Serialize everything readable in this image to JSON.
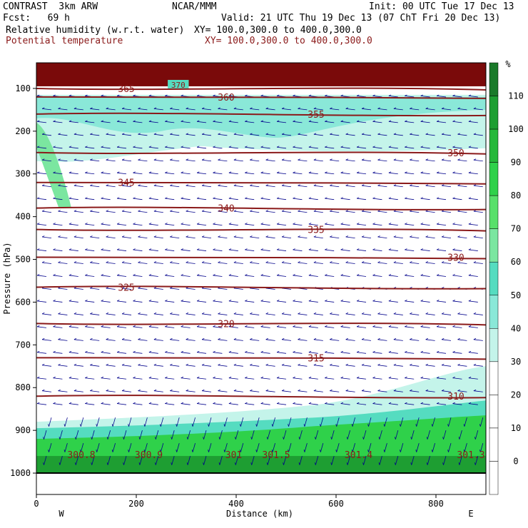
{
  "header": {
    "model": "CONTRAST  3km ARW",
    "org": "NCAR/MMM",
    "init": "Init: 00 UTC Tue 17 Dec 13",
    "fcst": "Fcst:   69 h",
    "valid": "Valid: 21 UTC Thu 19 Dec 13 (07 ChT Fri 20 Dec 13)",
    "field1_name": "Relative humidity (w.r.t. water)",
    "field1_xy": "XY= 100.0,300.0 to 400.0,300.0",
    "field2_name": "Potential temperature",
    "field2_xy": "XY= 100.0,300.0 to 400.0,300.0"
  },
  "colors": {
    "theta": "#8b1a1a",
    "wind": "#00008b",
    "ground": "#000000"
  },
  "chart_data": {
    "type": "heatmap",
    "title": "",
    "xlabel": "Distance (km)",
    "ylabel": "Pressure (hPa)",
    "xlim": [
      0,
      900
    ],
    "ylim": [
      1050,
      40
    ],
    "xticks": [
      0,
      200,
      400,
      600,
      800
    ],
    "yticks": [
      100,
      200,
      300,
      400,
      500,
      600,
      700,
      800,
      900,
      1000
    ],
    "x_end_labels": {
      "left": "W",
      "right": "E"
    },
    "colorbar": {
      "unit": "%",
      "levels": [
        110,
        100,
        90,
        80,
        70,
        60,
        50,
        40,
        30,
        20,
        10,
        0
      ],
      "colors": [
        "#1a7a2a",
        "#1e9e32",
        "#26b83a",
        "#2fd14a",
        "#58e06a",
        "#7be6a0",
        "#55dcc0",
        "#8ae8d8",
        "#c4f4ea",
        "#ffffff",
        "#ffffff",
        "#ffffff",
        "#ffffff"
      ]
    },
    "theta_contours": [
      {
        "value": 365,
        "label": "365",
        "pressure": 100
      },
      {
        "value": 360,
        "label": "360",
        "pressure": 120
      },
      {
        "value": 355,
        "label": "355",
        "pressure": 160
      },
      {
        "value": 350,
        "label": "350",
        "pressure": 250
      },
      {
        "value": 345,
        "label": "345",
        "pressure": 320
      },
      {
        "value": 340,
        "label": "340",
        "pressure": 380
      },
      {
        "value": 335,
        "label": "335",
        "pressure": 430
      },
      {
        "value": 330,
        "label": "330",
        "pressure": 495
      },
      {
        "value": 325,
        "label": "325",
        "pressure": 565
      },
      {
        "value": 320,
        "label": "320",
        "pressure": 650
      },
      {
        "value": 315,
        "label": "315",
        "pressure": 730
      },
      {
        "value": 310,
        "label": "310",
        "pressure": 820
      }
    ],
    "surface_labels": [
      {
        "label": "300.8",
        "x": 90
      },
      {
        "label": "300.9",
        "x": 225
      },
      {
        "label": "301",
        "x": 395
      },
      {
        "label": "301.5",
        "x": 480
      },
      {
        "label": "301.4",
        "x": 645
      },
      {
        "label": "301.3",
        "x": 870
      }
    ],
    "top_label_370": "370"
  }
}
